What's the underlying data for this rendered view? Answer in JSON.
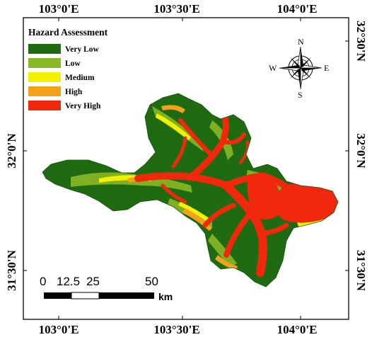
{
  "map": {
    "colors": {
      "very_low": "#1f6b12",
      "low": "#8ab927",
      "medium": "#f2f200",
      "high": "#f5a21a",
      "very_high": "#f2280d"
    }
  },
  "legend": {
    "title": "Hazard Assessment",
    "items": [
      {
        "label": "Very Low",
        "color": "#1f6b12"
      },
      {
        "label": "Low",
        "color": "#8ab927"
      },
      {
        "label": "Medium",
        "color": "#f2f200"
      },
      {
        "label": "High",
        "color": "#f5a21a"
      },
      {
        "label": "Very High",
        "color": "#f2280d"
      }
    ]
  },
  "axes": {
    "top": [
      "103°0'E",
      "103°30'E",
      "104°0'E"
    ],
    "bottom": [
      "103°0'E",
      "103°30'E",
      "104°0'E"
    ],
    "left": [
      "32°0'N",
      "31°30'N"
    ],
    "right": [
      "32°30'N",
      "32°0'N",
      "31°30'N"
    ]
  },
  "compass": {
    "n": "N",
    "s": "S",
    "e": "E",
    "w": "W"
  },
  "scale_bar": {
    "ticks": [
      "0",
      "12.5",
      "25",
      "50"
    ],
    "unit": "km"
  }
}
